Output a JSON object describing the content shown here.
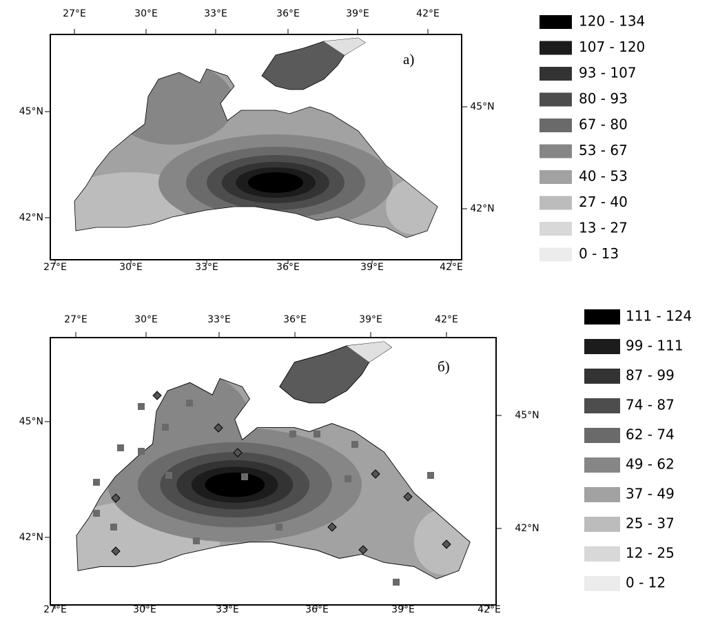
{
  "panels": [
    {
      "label": "а)",
      "top_ticks": [
        "27°E",
        "30°E",
        "33°E",
        "36°E",
        "39°E",
        "42°E"
      ],
      "bottom_ticks": [
        "27°E",
        "30°E",
        "33°E",
        "36°E",
        "39°E",
        "42°E"
      ],
      "left_ticks": [
        "45°N",
        "42°N"
      ],
      "right_ticks": [
        "45°N",
        "42°N"
      ],
      "legend": [
        {
          "label": "120 - 134",
          "color": "#000000"
        },
        {
          "label": "107 - 120",
          "color": "#1c1c1c"
        },
        {
          "label": "93 - 107",
          "color": "#333333"
        },
        {
          "label": "80 - 93",
          "color": "#4d4d4d"
        },
        {
          "label": "67 - 80",
          "color": "#6a6a6a"
        },
        {
          "label": "53 - 67",
          "color": "#868686"
        },
        {
          "label": "40 - 53",
          "color": "#a2a2a2"
        },
        {
          "label": "27 - 40",
          "color": "#bcbcbc"
        },
        {
          "label": "13 - 27",
          "color": "#d8d8d8"
        },
        {
          "label": "0 - 13",
          "color": "#ececec"
        }
      ]
    },
    {
      "label": "б)",
      "top_ticks": [
        "27°E",
        "30°E",
        "33°E",
        "36°E",
        "39°E",
        "42°E"
      ],
      "bottom_ticks": [
        "27°E",
        "30°E",
        "33°E",
        "36°E",
        "39°E",
        "42°E"
      ],
      "left_ticks": [
        "45°N",
        "42°N"
      ],
      "right_ticks": [
        "45°N",
        "42°N"
      ],
      "legend": [
        {
          "label": "111 - 124",
          "color": "#000000"
        },
        {
          "label": "99 - 111",
          "color": "#1c1c1c"
        },
        {
          "label": "87 - 99",
          "color": "#333333"
        },
        {
          "label": "74 - 87",
          "color": "#4d4d4d"
        },
        {
          "label": "62 - 74",
          "color": "#6a6a6a"
        },
        {
          "label": "49 - 62",
          "color": "#868686"
        },
        {
          "label": "37 - 49",
          "color": "#a2a2a2"
        },
        {
          "label": "25 - 37",
          "color": "#bcbcbc"
        },
        {
          "label": "12 - 25",
          "color": "#d8d8d8"
        },
        {
          "label": "0 - 12",
          "color": "#ececec"
        }
      ]
    }
  ]
}
